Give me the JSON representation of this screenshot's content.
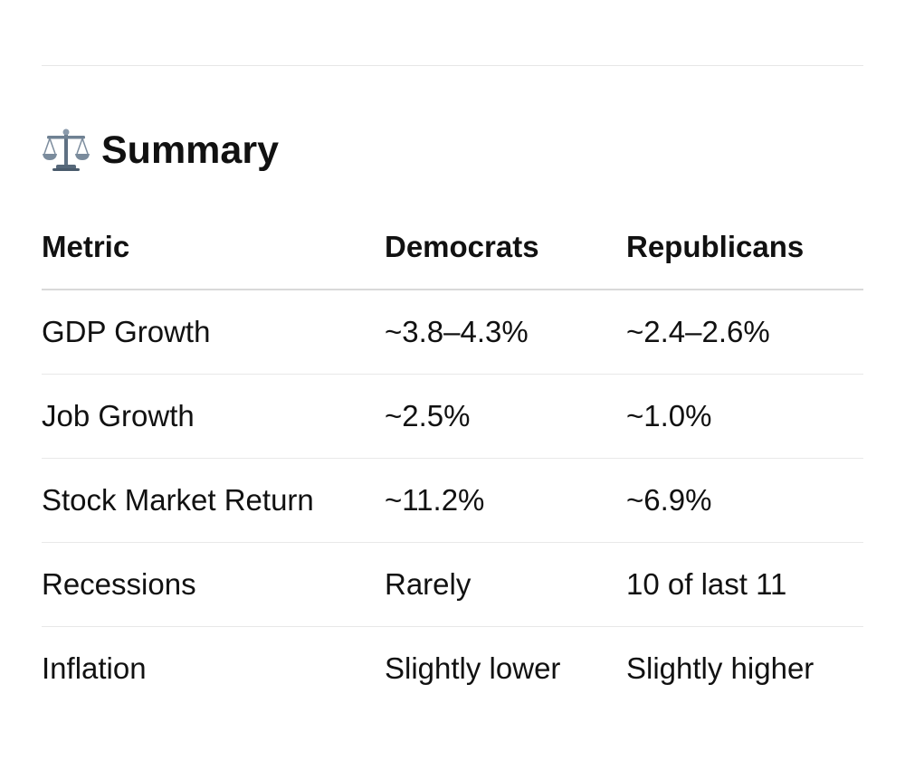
{
  "summary": {
    "title": "Summary",
    "icon": "balance-scale-icon",
    "columns": [
      "Metric",
      "Democrats",
      "Republicans"
    ],
    "rows": [
      {
        "metric": "GDP Growth",
        "democrats": "~3.8–4.3%",
        "republicans": "~2.4–2.6%"
      },
      {
        "metric": "Job Growth",
        "democrats": "~2.5%",
        "republicans": "~1.0%"
      },
      {
        "metric": "Stock Market Return",
        "democrats": "~11.2%",
        "republicans": "~6.9%"
      },
      {
        "metric": "Recessions",
        "democrats": "Rarely",
        "republicans": "10 of last 11"
      },
      {
        "metric": "Inflation",
        "democrats": "Slightly lower",
        "republicans": "Slightly higher"
      }
    ]
  }
}
